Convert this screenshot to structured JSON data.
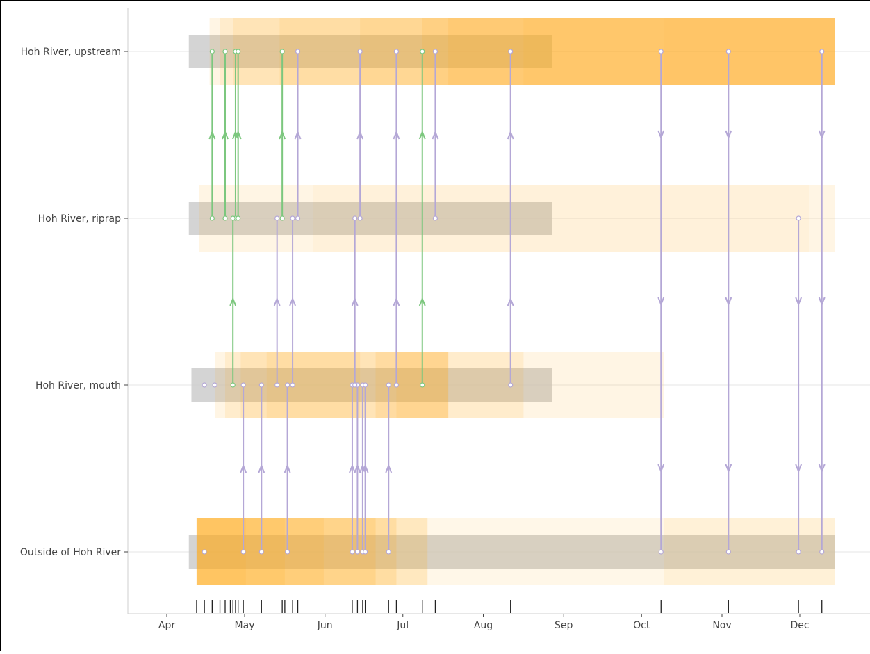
{
  "chart_data": {
    "type": "timeline",
    "title": "",
    "xlabel": "",
    "ylabel": "",
    "x_axis": {
      "unit": "day-of-year",
      "range": [
        76,
        363
      ],
      "ticks": [
        {
          "label": "Apr",
          "value": 105.5
        },
        {
          "label": "May",
          "value": 135.5
        },
        {
          "label": "Jun",
          "value": 166.5
        },
        {
          "label": "Jul",
          "value": 196.5
        },
        {
          "label": "Aug",
          "value": 227.5
        },
        {
          "label": "Sep",
          "value": 258.5
        },
        {
          "label": "Oct",
          "value": 288.5
        },
        {
          "label": "Nov",
          "value": 319.5
        },
        {
          "label": "Dec",
          "value": 349.5
        }
      ]
    },
    "categories": [
      "Hoh River, upstream",
      "Hoh River, riprap",
      "Hoh River, mouth",
      "Outside of Hoh River"
    ],
    "gray_bars": [
      {
        "category": 0,
        "start": 114,
        "end": 254
      },
      {
        "category": 1,
        "start": 114,
        "end": 254
      },
      {
        "category": 2,
        "start": 115,
        "end": 254
      },
      {
        "category": 3,
        "start": 114,
        "end": 363
      }
    ],
    "residence_segments": [
      {
        "category": 0,
        "start": 122,
        "end": 363,
        "opacity": 0.12
      },
      {
        "category": 0,
        "start": 126,
        "end": 363,
        "opacity": 0.12
      },
      {
        "category": 0,
        "start": 131,
        "end": 363,
        "opacity": 0.12
      },
      {
        "category": 0,
        "start": 149,
        "end": 363,
        "opacity": 0.12
      },
      {
        "category": 0,
        "start": 180,
        "end": 363,
        "opacity": 0.12
      },
      {
        "category": 0,
        "start": 204,
        "end": 363,
        "opacity": 0.14
      },
      {
        "category": 0,
        "start": 214,
        "end": 363,
        "opacity": 0.14
      },
      {
        "category": 0,
        "start": 243,
        "end": 363,
        "opacity": 0.1
      },
      {
        "category": 0,
        "start": 297,
        "end": 363,
        "opacity": 0.05
      },
      {
        "category": 1,
        "start": 118,
        "end": 363,
        "opacity": 0.12
      },
      {
        "category": 1,
        "start": 162,
        "end": 353,
        "opacity": 0.05
      },
      {
        "category": 2,
        "start": 124,
        "end": 297,
        "opacity": 0.12
      },
      {
        "category": 2,
        "start": 128,
        "end": 243,
        "opacity": 0.12
      },
      {
        "category": 2,
        "start": 134,
        "end": 214,
        "opacity": 0.12
      },
      {
        "category": 2,
        "start": 144,
        "end": 180,
        "opacity": 0.12
      },
      {
        "category": 2,
        "start": 186,
        "end": 214,
        "opacity": 0.14
      },
      {
        "category": 2,
        "start": 194,
        "end": 214,
        "opacity": 0.12
      },
      {
        "category": 3,
        "start": 117,
        "end": 363,
        "opacity": 0.1
      },
      {
        "category": 3,
        "start": 117,
        "end": 206,
        "opacity": 0.2
      },
      {
        "category": 3,
        "start": 117,
        "end": 194,
        "opacity": 0.18
      },
      {
        "category": 3,
        "start": 117,
        "end": 186,
        "opacity": 0.18
      },
      {
        "category": 3,
        "start": 117,
        "end": 166,
        "opacity": 0.15
      },
      {
        "category": 3,
        "start": 117,
        "end": 151,
        "opacity": 0.15
      },
      {
        "category": 3,
        "start": 117,
        "end": 136,
        "opacity": 0.12
      },
      {
        "category": 3,
        "start": 297,
        "end": 363,
        "opacity": 0.08
      }
    ],
    "movements": [
      {
        "day": 120,
        "from": 3,
        "to": 2,
        "type": "none"
      },
      {
        "day": 123,
        "from": 1,
        "to": 0,
        "type": "upstream"
      },
      {
        "day": 124,
        "from": 2,
        "to": 2,
        "type": "none"
      },
      {
        "day": 128,
        "from": 1,
        "to": 0,
        "type": "upstream"
      },
      {
        "day": 132,
        "from": 1,
        "to": 0,
        "type": "upstream"
      },
      {
        "day": 133,
        "from": 1,
        "to": 0,
        "type": "upstream"
      },
      {
        "day": 131,
        "from": 2,
        "to": 1,
        "type": "upstream"
      },
      {
        "day": 150,
        "from": 1,
        "to": 0,
        "type": "upstream"
      },
      {
        "day": 204,
        "from": 2,
        "to": 0,
        "type": "upstream"
      },
      {
        "day": 135,
        "from": 3,
        "to": 2,
        "type": "entry"
      },
      {
        "day": 142,
        "from": 3,
        "to": 2,
        "type": "entry"
      },
      {
        "day": 152,
        "from": 3,
        "to": 2,
        "type": "entry"
      },
      {
        "day": 148,
        "from": 2,
        "to": 1,
        "type": "entry"
      },
      {
        "day": 154,
        "from": 2,
        "to": 1,
        "type": "entry"
      },
      {
        "day": 156,
        "from": 1,
        "to": 0,
        "type": "entry"
      },
      {
        "day": 177,
        "from": 3,
        "to": 2,
        "type": "entry"
      },
      {
        "day": 179,
        "from": 3,
        "to": 2,
        "type": "entry"
      },
      {
        "day": 181,
        "from": 3,
        "to": 2,
        "type": "entry"
      },
      {
        "day": 182,
        "from": 3,
        "to": 2,
        "type": "entry"
      },
      {
        "day": 191,
        "from": 3,
        "to": 2,
        "type": "entry"
      },
      {
        "day": 178,
        "from": 2,
        "to": 1,
        "type": "entry"
      },
      {
        "day": 180,
        "from": 1,
        "to": 0,
        "type": "entry"
      },
      {
        "day": 194,
        "from": 2,
        "to": 0,
        "type": "entry"
      },
      {
        "day": 209,
        "from": 1,
        "to": 0,
        "type": "entry"
      },
      {
        "day": 238,
        "from": 2,
        "to": 0,
        "type": "entry"
      },
      {
        "day": 296,
        "from": 0,
        "to": 3,
        "type": "exit"
      },
      {
        "day": 322,
        "from": 0,
        "to": 3,
        "type": "exit"
      },
      {
        "day": 349,
        "from": 1,
        "to": 3,
        "type": "exit"
      },
      {
        "day": 358,
        "from": 0,
        "to": 3,
        "type": "exit"
      }
    ],
    "rug_days": [
      117,
      120,
      123,
      126,
      128,
      130,
      131,
      132,
      133,
      135,
      142,
      150,
      151,
      154,
      156,
      177,
      179,
      181,
      182,
      191,
      194,
      204,
      209,
      238,
      296,
      322,
      349,
      358
    ],
    "grid": true,
    "legend": "none"
  }
}
